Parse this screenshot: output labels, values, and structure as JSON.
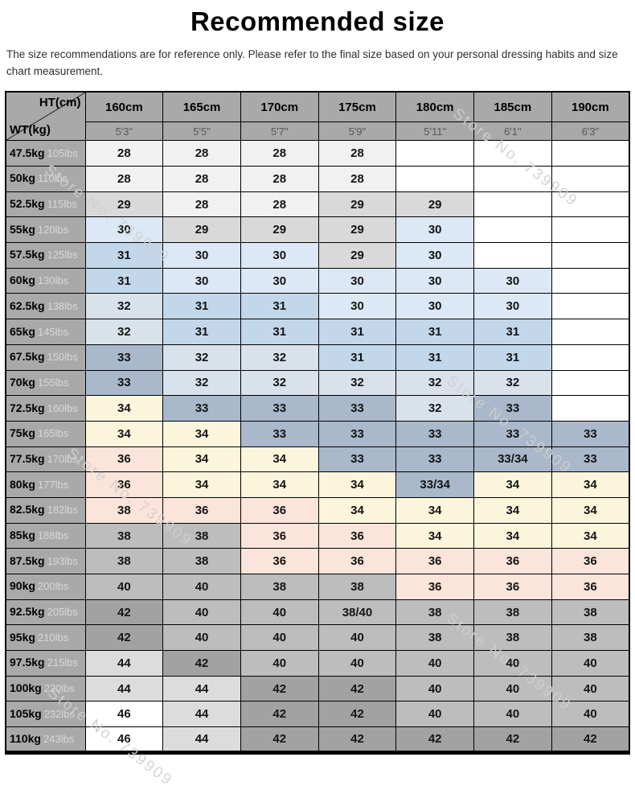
{
  "title": "Recommended size",
  "disclaimer": "The size recommendations are for reference only. Please refer to the final size based on your personal dressing habits and size chart measurement.",
  "watermark": "Store No. 739909",
  "corner": {
    "ht_label": "HT(cm)",
    "wt_label": "WT(kg)"
  },
  "colors": {
    "header_gray": "#a9a9a9",
    "w": "#ffffff",
    "s28": "#f1f1f1",
    "s29": "#d9d9d9",
    "s30": "#dce8f5",
    "s31": "#c3d7eb",
    "s32": "#d9e1ea",
    "s33": "#a9b8cb",
    "s34": "#fbf5dc",
    "pink": "#fbe4d9",
    "gray40": "#bdbdbd",
    "gray42": "#a2a2a2",
    "s44": "#dcdcdc"
  },
  "chart_data": {
    "type": "table",
    "title": "Recommended size",
    "columns_cm": [
      "160cm",
      "165cm",
      "170cm",
      "175cm",
      "180cm",
      "185cm",
      "190cm"
    ],
    "columns_inch": [
      "5'3\"",
      "5'5\"",
      "5'7\"",
      "5'9\"",
      "5'11\"",
      "6'1\"",
      "6'3\""
    ],
    "rows": [
      {
        "kg": "47.5kg",
        "lbs": "105lbs",
        "cells": [
          [
            "28",
            "s28"
          ],
          [
            "28",
            "s28"
          ],
          [
            "28",
            "s28"
          ],
          [
            "28",
            "s28"
          ],
          [
            "",
            "w"
          ],
          [
            "",
            "w"
          ],
          [
            "",
            "w"
          ]
        ]
      },
      {
        "kg": "50kg",
        "lbs": "110lbs",
        "cells": [
          [
            "28",
            "s28"
          ],
          [
            "28",
            "s28"
          ],
          [
            "28",
            "s28"
          ],
          [
            "28",
            "s28"
          ],
          [
            "",
            "w"
          ],
          [
            "",
            "w"
          ],
          [
            "",
            "w"
          ]
        ]
      },
      {
        "kg": "52.5kg",
        "lbs": "115lbs",
        "cells": [
          [
            "29",
            "s29"
          ],
          [
            "28",
            "s28"
          ],
          [
            "28",
            "s28"
          ],
          [
            "29",
            "s29"
          ],
          [
            "29",
            "s29"
          ],
          [
            "",
            "w"
          ],
          [
            "",
            "w"
          ]
        ]
      },
      {
        "kg": "55kg",
        "lbs": "120lbs",
        "cells": [
          [
            "30",
            "s30"
          ],
          [
            "29",
            "s29"
          ],
          [
            "29",
            "s29"
          ],
          [
            "29",
            "s29"
          ],
          [
            "30",
            "s30"
          ],
          [
            "",
            "w"
          ],
          [
            "",
            "w"
          ]
        ]
      },
      {
        "kg": "57.5kg",
        "lbs": "125lbs",
        "cells": [
          [
            "31",
            "s31"
          ],
          [
            "30",
            "s30"
          ],
          [
            "30",
            "s30"
          ],
          [
            "29",
            "s29"
          ],
          [
            "30",
            "s30"
          ],
          [
            "",
            "w"
          ],
          [
            "",
            "w"
          ]
        ]
      },
      {
        "kg": "60kg",
        "lbs": "130lbs",
        "cells": [
          [
            "31",
            "s31"
          ],
          [
            "30",
            "s30"
          ],
          [
            "30",
            "s30"
          ],
          [
            "30",
            "s30"
          ],
          [
            "30",
            "s30"
          ],
          [
            "30",
            "s30"
          ],
          [
            "",
            "w"
          ]
        ]
      },
      {
        "kg": "62.5kg",
        "lbs": "138lbs",
        "cells": [
          [
            "32",
            "s32"
          ],
          [
            "31",
            "s31"
          ],
          [
            "31",
            "s31"
          ],
          [
            "30",
            "s30"
          ],
          [
            "30",
            "s30"
          ],
          [
            "30",
            "s30"
          ],
          [
            "",
            "w"
          ]
        ]
      },
      {
        "kg": "65kg",
        "lbs": "145lbs",
        "cells": [
          [
            "32",
            "s32"
          ],
          [
            "31",
            "s31"
          ],
          [
            "31",
            "s31"
          ],
          [
            "31",
            "s31"
          ],
          [
            "31",
            "s31"
          ],
          [
            "31",
            "s31"
          ],
          [
            "",
            "w"
          ]
        ]
      },
      {
        "kg": "67.5kg",
        "lbs": "150lbs",
        "cells": [
          [
            "33",
            "s33"
          ],
          [
            "32",
            "s32"
          ],
          [
            "32",
            "s32"
          ],
          [
            "31",
            "s31"
          ],
          [
            "31",
            "s31"
          ],
          [
            "31",
            "s31"
          ],
          [
            "",
            "w"
          ]
        ]
      },
      {
        "kg": "70kg",
        "lbs": "155lbs",
        "cells": [
          [
            "33",
            "s33"
          ],
          [
            "32",
            "s32"
          ],
          [
            "32",
            "s32"
          ],
          [
            "32",
            "s32"
          ],
          [
            "32",
            "s32"
          ],
          [
            "32",
            "s32"
          ],
          [
            "",
            "w"
          ]
        ]
      },
      {
        "kg": "72.5kg",
        "lbs": "160lbs",
        "cells": [
          [
            "34",
            "s34"
          ],
          [
            "33",
            "s33"
          ],
          [
            "33",
            "s33"
          ],
          [
            "33",
            "s33"
          ],
          [
            "32",
            "s32"
          ],
          [
            "33",
            "s33"
          ],
          [
            "",
            "w"
          ]
        ]
      },
      {
        "kg": "75kg",
        "lbs": "165lbs",
        "cells": [
          [
            "34",
            "s34"
          ],
          [
            "34",
            "s34"
          ],
          [
            "33",
            "s33"
          ],
          [
            "33",
            "s33"
          ],
          [
            "33",
            "s33"
          ],
          [
            "33",
            "s33"
          ],
          [
            "33",
            "s33"
          ]
        ]
      },
      {
        "kg": "77.5kg",
        "lbs": "170lbs",
        "cells": [
          [
            "36",
            "pink"
          ],
          [
            "34",
            "s34"
          ],
          [
            "34",
            "s34"
          ],
          [
            "33",
            "s33"
          ],
          [
            "33",
            "s33"
          ],
          [
            "33/34",
            "s33"
          ],
          [
            "33",
            "s33"
          ]
        ]
      },
      {
        "kg": "80kg",
        "lbs": "177lbs",
        "cells": [
          [
            "36",
            "pink"
          ],
          [
            "34",
            "s34"
          ],
          [
            "34",
            "s34"
          ],
          [
            "34",
            "s34"
          ],
          [
            "33/34",
            "s33"
          ],
          [
            "34",
            "s34"
          ],
          [
            "34",
            "s34"
          ]
        ]
      },
      {
        "kg": "82.5kg",
        "lbs": "182lbs",
        "cells": [
          [
            "38",
            "pink"
          ],
          [
            "36",
            "pink"
          ],
          [
            "36",
            "pink"
          ],
          [
            "34",
            "s34"
          ],
          [
            "34",
            "s34"
          ],
          [
            "34",
            "s34"
          ],
          [
            "34",
            "s34"
          ]
        ]
      },
      {
        "kg": "85kg",
        "lbs": "188lbs",
        "cells": [
          [
            "38",
            "gray40"
          ],
          [
            "38",
            "gray40"
          ],
          [
            "36",
            "pink"
          ],
          [
            "36",
            "pink"
          ],
          [
            "34",
            "s34"
          ],
          [
            "34",
            "s34"
          ],
          [
            "34",
            "s34"
          ]
        ]
      },
      {
        "kg": "87.5kg",
        "lbs": "193lbs",
        "cells": [
          [
            "38",
            "gray40"
          ],
          [
            "38",
            "gray40"
          ],
          [
            "36",
            "pink"
          ],
          [
            "36",
            "pink"
          ],
          [
            "36",
            "pink"
          ],
          [
            "36",
            "pink"
          ],
          [
            "36",
            "pink"
          ]
        ]
      },
      {
        "kg": "90kg",
        "lbs": "200lbs",
        "cells": [
          [
            "40",
            "gray40"
          ],
          [
            "40",
            "gray40"
          ],
          [
            "38",
            "gray40"
          ],
          [
            "38",
            "gray40"
          ],
          [
            "36",
            "pink"
          ],
          [
            "36",
            "pink"
          ],
          [
            "36",
            "pink"
          ]
        ]
      },
      {
        "kg": "92.5kg",
        "lbs": "205lbs",
        "cells": [
          [
            "42",
            "gray42"
          ],
          [
            "40",
            "gray40"
          ],
          [
            "40",
            "gray40"
          ],
          [
            "38/40",
            "gray40"
          ],
          [
            "38",
            "gray40"
          ],
          [
            "38",
            "gray40"
          ],
          [
            "38",
            "gray40"
          ]
        ]
      },
      {
        "kg": "95kg",
        "lbs": "210lbs",
        "cells": [
          [
            "42",
            "gray42"
          ],
          [
            "40",
            "gray40"
          ],
          [
            "40",
            "gray40"
          ],
          [
            "40",
            "gray40"
          ],
          [
            "38",
            "gray40"
          ],
          [
            "38",
            "gray40"
          ],
          [
            "38",
            "gray40"
          ]
        ]
      },
      {
        "kg": "97.5kg",
        "lbs": "215lbs",
        "cells": [
          [
            "44",
            "s44"
          ],
          [
            "42",
            "gray42"
          ],
          [
            "40",
            "gray40"
          ],
          [
            "40",
            "gray40"
          ],
          [
            "40",
            "gray40"
          ],
          [
            "40",
            "gray40"
          ],
          [
            "40",
            "gray40"
          ]
        ]
      },
      {
        "kg": "100kg",
        "lbs": "220lbs",
        "cells": [
          [
            "44",
            "s44"
          ],
          [
            "44",
            "s44"
          ],
          [
            "42",
            "gray42"
          ],
          [
            "42",
            "gray42"
          ],
          [
            "40",
            "gray40"
          ],
          [
            "40",
            "gray40"
          ],
          [
            "40",
            "gray40"
          ]
        ]
      },
      {
        "kg": "105kg",
        "lbs": "232lbs",
        "cells": [
          [
            "46",
            "w"
          ],
          [
            "44",
            "s44"
          ],
          [
            "42",
            "gray42"
          ],
          [
            "42",
            "gray42"
          ],
          [
            "40",
            "gray40"
          ],
          [
            "40",
            "gray40"
          ],
          [
            "40",
            "gray40"
          ]
        ]
      },
      {
        "kg": "110kg",
        "lbs": "243lbs",
        "cells": [
          [
            "46",
            "w"
          ],
          [
            "44",
            "s44"
          ],
          [
            "42",
            "gray42"
          ],
          [
            "42",
            "gray42"
          ],
          [
            "42",
            "gray42"
          ],
          [
            "42",
            "gray42"
          ],
          [
            "42",
            "gray42"
          ]
        ]
      }
    ]
  }
}
